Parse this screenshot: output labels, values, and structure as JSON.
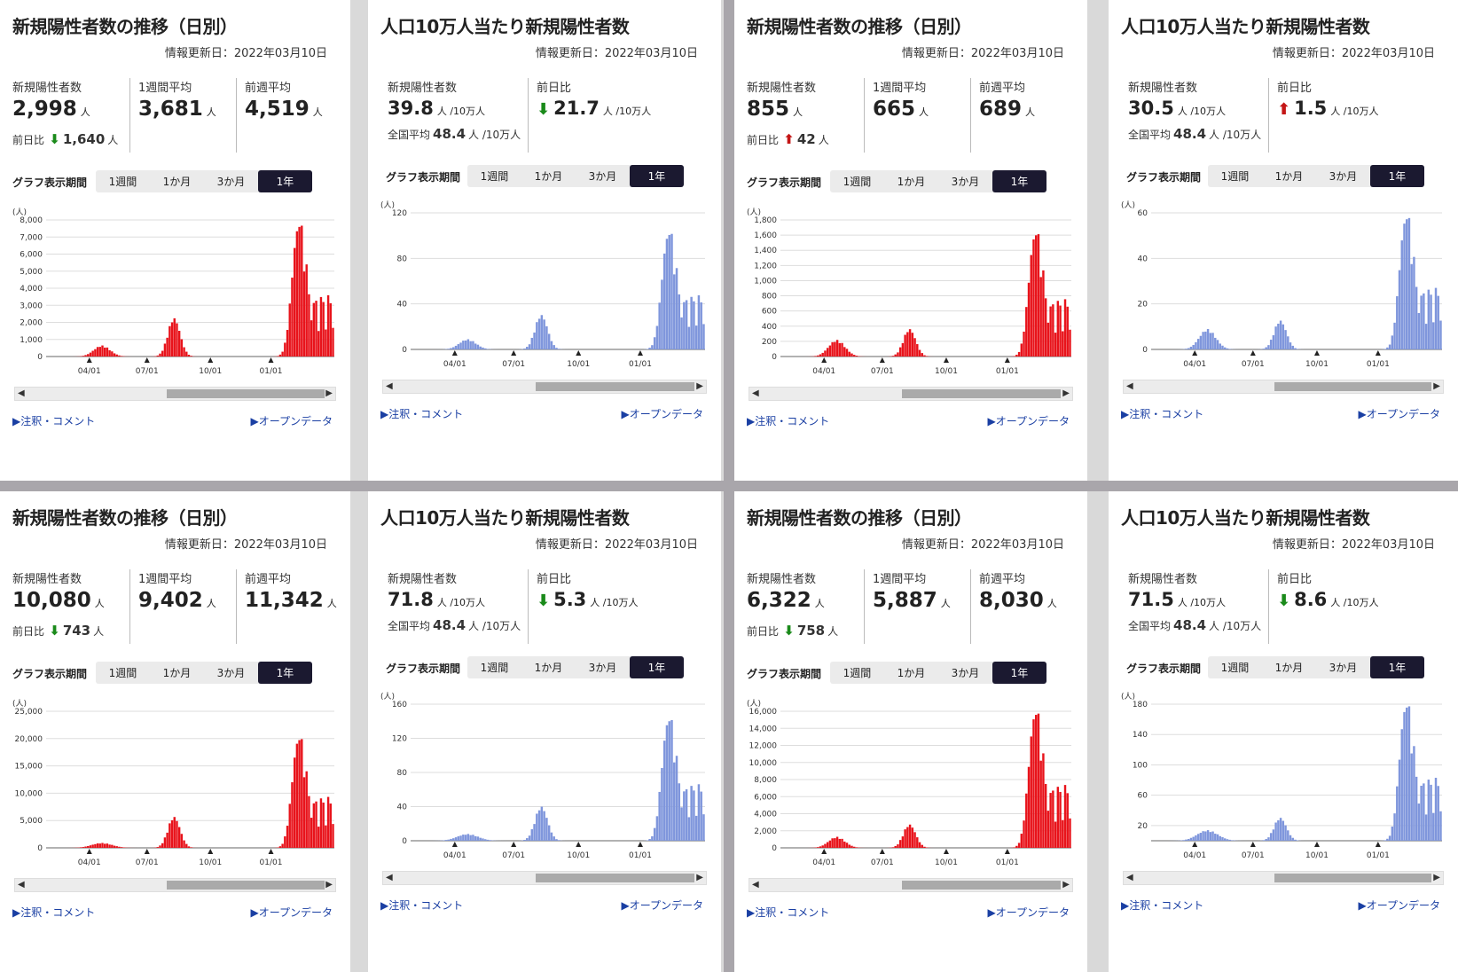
{
  "common": {
    "updated": "情報更新日：2022年03月10日",
    "period_label": "グラフ表示期間",
    "period_buttons": [
      "1週間",
      "1か月",
      "3か月",
      "1年"
    ],
    "link_notes": "▶注釈・コメント",
    "link_open": "▶オープンデータ",
    "y_unit": "(人)",
    "x_ticks": [
      "04/01",
      "07/01",
      "10/01",
      "01/01"
    ],
    "scroll_left": "◀",
    "scroll_right": "▶",
    "national_avg_label": "全国平均",
    "national_avg_value": "48.4",
    "per_unit": "人 /10万人",
    "person_unit": "人",
    "prev_day_label": "前日比",
    "colors": {
      "red": "#e8131b",
      "blue": "#7f96dc",
      "active_button": "#1b1930",
      "link": "#1a3fa3",
      "down_arrow": "#1a8a1a",
      "up_arrow": "#c41616"
    }
  },
  "panels": [
    {
      "kind": "count",
      "title": "新規陽性者数の推移（日別）",
      "stats": [
        {
          "label": "新規陽性者数",
          "value": "2,998"
        },
        {
          "label": "1週間平均",
          "value": "3,681"
        },
        {
          "label": "前週平均",
          "value": "4,519"
        }
      ],
      "prev_label": "前日比",
      "prev_dir": "down",
      "prev_value": "1,640",
      "chart_data": {
        "type": "bar",
        "color": "#e8131b",
        "y_ticks": [
          "0",
          "1,000",
          "2,000",
          "3,000",
          "4,000",
          "5,000",
          "6,000",
          "7,000",
          "8,000"
        ],
        "ylim": [
          0,
          8000
        ],
        "x_ticks": [
          "04/01",
          "07/01",
          "10/01",
          "01/01"
        ],
        "waves": [
          {
            "center": 0.19,
            "peak": 650,
            "width": 0.04
          },
          {
            "center": 0.44,
            "peak": 2300,
            "width": 0.03
          },
          {
            "center": 0.87,
            "peak": 7700,
            "width": 0.03
          }
        ]
      }
    },
    {
      "kind": "rate",
      "title": "人口10万人当たり新規陽性者数",
      "stats": [
        {
          "label": "新規陽性者数",
          "value": "39.8"
        },
        {
          "label": "前日比",
          "value": "21.7"
        }
      ],
      "prev_dir": "down",
      "chart_data": {
        "type": "bar",
        "color": "#7f96dc",
        "y_ticks": [
          "0",
          "40",
          "80",
          "120"
        ],
        "ylim": [
          0,
          120
        ],
        "x_ticks": [
          "04/01",
          "07/01",
          "10/01",
          "01/01"
        ],
        "waves": [
          {
            "center": 0.19,
            "peak": 9,
            "width": 0.04
          },
          {
            "center": 0.44,
            "peak": 31,
            "width": 0.03
          },
          {
            "center": 0.87,
            "peak": 102,
            "width": 0.03
          }
        ]
      }
    },
    {
      "kind": "count",
      "title": "新規陽性者数の推移（日別）",
      "stats": [
        {
          "label": "新規陽性者数",
          "value": "855"
        },
        {
          "label": "1週間平均",
          "value": "665"
        },
        {
          "label": "前週平均",
          "value": "689"
        }
      ],
      "prev_label": "前日比",
      "prev_dir": "up",
      "prev_value": "42",
      "chart_data": {
        "type": "bar",
        "color": "#e8131b",
        "y_ticks": [
          "0",
          "200",
          "400",
          "600",
          "800",
          "1,000",
          "1,200",
          "1,400",
          "1,600",
          "1,800"
        ],
        "ylim": [
          0,
          1800
        ],
        "x_ticks": [
          "04/01",
          "07/01",
          "10/01",
          "01/01"
        ],
        "waves": [
          {
            "center": 0.19,
            "peak": 220,
            "width": 0.04
          },
          {
            "center": 0.44,
            "peak": 370,
            "width": 0.03
          },
          {
            "center": 0.87,
            "peak": 1620,
            "width": 0.03
          }
        ]
      }
    },
    {
      "kind": "rate",
      "title": "人口10万人当たり新規陽性者数",
      "stats": [
        {
          "label": "新規陽性者数",
          "value": "30.5"
        },
        {
          "label": "前日比",
          "value": "1.5"
        }
      ],
      "prev_dir": "up",
      "chart_data": {
        "type": "bar",
        "color": "#7f96dc",
        "y_ticks": [
          "0",
          "20",
          "40",
          "60"
        ],
        "ylim": [
          0,
          60
        ],
        "x_ticks": [
          "04/01",
          "07/01",
          "10/01",
          "01/01"
        ],
        "waves": [
          {
            "center": 0.19,
            "peak": 9,
            "width": 0.04
          },
          {
            "center": 0.44,
            "peak": 13,
            "width": 0.03
          },
          {
            "center": 0.87,
            "peak": 58,
            "width": 0.03
          }
        ]
      }
    },
    {
      "kind": "count",
      "title": "新規陽性者数の推移（日別）",
      "stats": [
        {
          "label": "新規陽性者数",
          "value": "10,080"
        },
        {
          "label": "1週間平均",
          "value": "9,402"
        },
        {
          "label": "前週平均",
          "value": "11,342"
        }
      ],
      "prev_label": "前日比",
      "prev_dir": "down",
      "prev_value": "743",
      "chart_data": {
        "type": "bar",
        "color": "#e8131b",
        "y_ticks": [
          "0",
          "5,000",
          "10,000",
          "15,000",
          "20,000",
          "25,000"
        ],
        "ylim": [
          0,
          25000
        ],
        "x_ticks": [
          "04/01",
          "07/01",
          "10/01",
          "01/01"
        ],
        "waves": [
          {
            "center": 0.19,
            "peak": 900,
            "width": 0.05
          },
          {
            "center": 0.44,
            "peak": 5800,
            "width": 0.03
          },
          {
            "center": 0.87,
            "peak": 20000,
            "width": 0.03
          }
        ]
      }
    },
    {
      "kind": "rate",
      "title": "人口10万人当たり新規陽性者数",
      "stats": [
        {
          "label": "新規陽性者数",
          "value": "71.8"
        },
        {
          "label": "前日比",
          "value": "5.3"
        }
      ],
      "prev_dir": "down",
      "chart_data": {
        "type": "bar",
        "color": "#7f96dc",
        "y_ticks": [
          "0",
          "40",
          "80",
          "120",
          "160"
        ],
        "ylim": [
          0,
          160
        ],
        "x_ticks": [
          "04/01",
          "07/01",
          "10/01",
          "01/01"
        ],
        "waves": [
          {
            "center": 0.19,
            "peak": 8,
            "width": 0.05
          },
          {
            "center": 0.44,
            "peak": 41,
            "width": 0.03
          },
          {
            "center": 0.87,
            "peak": 142,
            "width": 0.03
          }
        ]
      }
    },
    {
      "kind": "count",
      "title": "新規陽性者数の推移（日別）",
      "stats": [
        {
          "label": "新規陽性者数",
          "value": "6,322"
        },
        {
          "label": "1週間平均",
          "value": "5,887"
        },
        {
          "label": "前週平均",
          "value": "8,030"
        }
      ],
      "prev_label": "前日比",
      "prev_dir": "down",
      "prev_value": "758",
      "chart_data": {
        "type": "bar",
        "color": "#e8131b",
        "y_ticks": [
          "0",
          "2,000",
          "4,000",
          "6,000",
          "8,000",
          "10,000",
          "12,000",
          "14,000",
          "16,000"
        ],
        "ylim": [
          0,
          16000
        ],
        "x_ticks": [
          "04/01",
          "07/01",
          "10/01",
          "01/01"
        ],
        "waves": [
          {
            "center": 0.19,
            "peak": 1300,
            "width": 0.04
          },
          {
            "center": 0.44,
            "peak": 2800,
            "width": 0.03
          },
          {
            "center": 0.87,
            "peak": 15800,
            "width": 0.03
          }
        ]
      }
    },
    {
      "kind": "rate",
      "title": "人口10万人当たり新規陽性者数",
      "stats": [
        {
          "label": "新規陽性者数",
          "value": "71.5"
        },
        {
          "label": "前日比",
          "value": "8.6"
        }
      ],
      "prev_dir": "down",
      "chart_data": {
        "type": "bar",
        "color": "#7f96dc",
        "y_ticks": [
          "20",
          "60",
          "100",
          "140",
          "180"
        ],
        "ylim": [
          0,
          180
        ],
        "x_ticks": [
          "04/01",
          "07/01",
          "10/01",
          "01/01"
        ],
        "waves": [
          {
            "center": 0.19,
            "peak": 14,
            "width": 0.05
          },
          {
            "center": 0.44,
            "peak": 31,
            "width": 0.03
          },
          {
            "center": 0.87,
            "peak": 178,
            "width": 0.03
          }
        ]
      }
    }
  ]
}
